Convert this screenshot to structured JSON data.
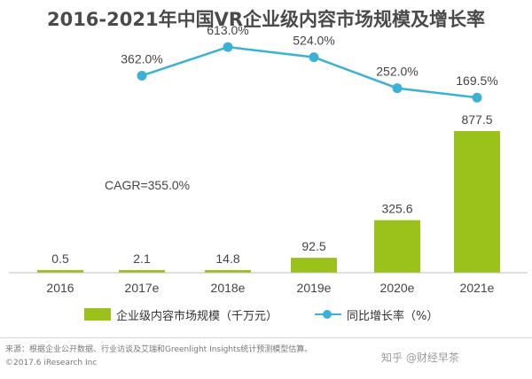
{
  "title": "2016-2021年中国VR企业级内容市场规模及增长率",
  "chart_data": {
    "type": "bar",
    "categories": [
      "2016",
      "2017e",
      "2018e",
      "2019e",
      "2020e",
      "2021e"
    ],
    "series": [
      {
        "name": "企业级内容市场规模（千万元）",
        "type": "bar",
        "color": "#9bc21a",
        "values": [
          0.5,
          2.1,
          14.8,
          92.5,
          325.6,
          877.5
        ],
        "labels": [
          "0.5",
          "2.1",
          "14.8",
          "92.5",
          "325.6",
          "877.5"
        ]
      },
      {
        "name": "同比增长率（%）",
        "type": "line",
        "color": "#3bb1d6",
        "values": [
          null,
          362.0,
          613.0,
          524.0,
          252.0,
          169.5
        ],
        "labels": [
          "",
          "362.0%",
          "613.0%",
          "524.0%",
          "252.0%",
          "169.5%"
        ]
      }
    ],
    "annotation": "CAGR=355.0%",
    "legend_position": "bottom"
  },
  "footer": {
    "source": "来源：根据企业公开数据、行业访谈及艾瑞和Greenlight Insights统计预测模型估算。",
    "copyright": "©2017.6 iResearch Inc",
    "watermark": "知乎 @财经早茶"
  }
}
